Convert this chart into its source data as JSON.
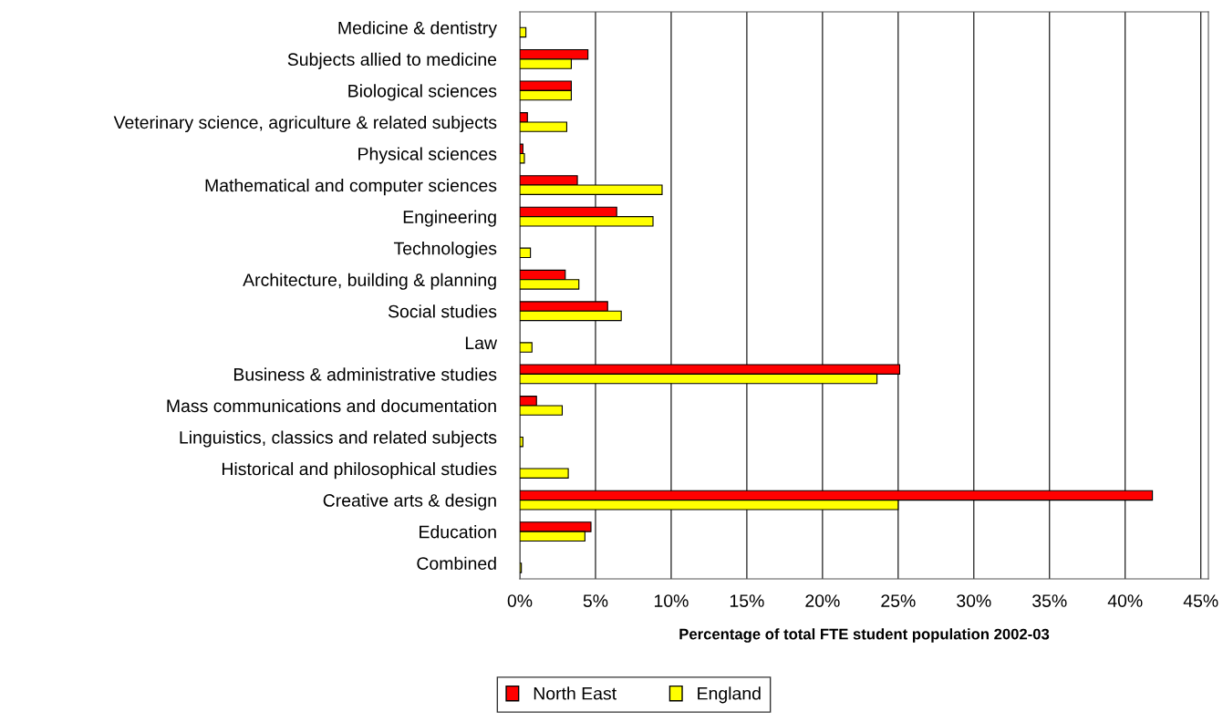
{
  "chart_data": {
    "type": "bar",
    "orientation": "horizontal",
    "xlabel": "Percentage of total FTE student population 2002-03",
    "categories": [
      "Medicine & dentistry",
      "Subjects allied to medicine",
      "Biological sciences",
      "Veterinary science, agriculture & related subjects",
      "Physical sciences",
      "Mathematical and computer sciences",
      "Engineering",
      "Technologies",
      "Architecture, building & planning",
      "Social studies",
      "Law",
      "Business & administrative studies",
      "Mass communications and documentation",
      "Linguistics, classics and related subjects",
      "Historical and philosophical studies",
      "Creative arts & design",
      "Education",
      "Combined"
    ],
    "series": [
      {
        "name": "North East",
        "color": "#ff0000",
        "values": [
          null,
          4.5,
          3.4,
          0.5,
          0.2,
          3.8,
          6.4,
          null,
          3.0,
          5.8,
          null,
          25.1,
          1.1,
          null,
          null,
          41.8,
          4.7,
          null
        ]
      },
      {
        "name": "England",
        "color": "#ffff00",
        "values": [
          0.4,
          3.4,
          3.4,
          3.1,
          0.3,
          9.4,
          8.8,
          0.7,
          3.9,
          6.7,
          0.8,
          23.6,
          2.8,
          0.2,
          3.2,
          25.0,
          4.3,
          0.1
        ]
      }
    ],
    "xlim": [
      0,
      45.5
    ],
    "xticks": [
      {
        "value": 0,
        "label": "0%"
      },
      {
        "value": 5,
        "label": "5%"
      },
      {
        "value": 10,
        "label": "10%"
      },
      {
        "value": 15,
        "label": "15%"
      },
      {
        "value": 20,
        "label": "20%"
      },
      {
        "value": 25,
        "label": "25%"
      },
      {
        "value": 30,
        "label": "30%"
      },
      {
        "value": 35,
        "label": "35%"
      },
      {
        "value": 40,
        "label": "40%"
      },
      {
        "value": 45,
        "label": "45%"
      }
    ],
    "grid": "x",
    "legend": "bottom"
  }
}
